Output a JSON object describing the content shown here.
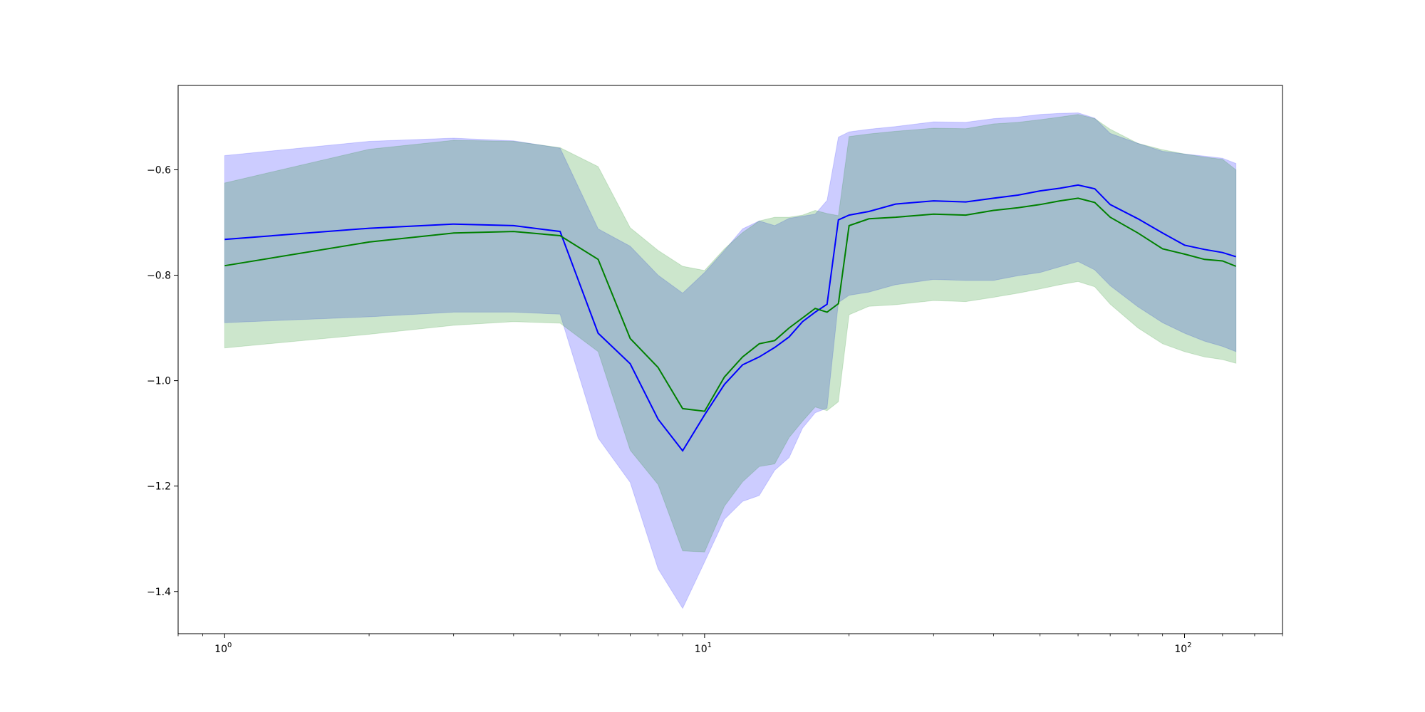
{
  "chart_data": {
    "type": "line",
    "title": "",
    "xlabel": "",
    "ylabel": "",
    "xscale": "log",
    "xlim": [
      0.8,
      160
    ],
    "ylim": [
      -1.48,
      -0.44
    ],
    "grid": false,
    "legend": "none",
    "x_ticks": [
      {
        "value": 1,
        "label": "10",
        "exp": "0"
      },
      {
        "value": 10,
        "label": "10",
        "exp": "1"
      },
      {
        "value": 100,
        "label": "10",
        "exp": "2"
      }
    ],
    "y_ticks": [
      {
        "value": -0.6,
        "label": "−0.6"
      },
      {
        "value": -0.8,
        "label": "−0.8"
      },
      {
        "value": -1.0,
        "label": "−1.0"
      },
      {
        "value": -1.2,
        "label": "−1.2"
      },
      {
        "value": -1.4,
        "label": "−1.4"
      }
    ],
    "series": [
      {
        "color": "#0000ff",
        "band_color": "#0000ff",
        "band_opacity": 0.2,
        "x": [
          1,
          2,
          3,
          4,
          5,
          6,
          7,
          8,
          9,
          10,
          11,
          12,
          13,
          14,
          15,
          16,
          17,
          18,
          19,
          20,
          22,
          25,
          30,
          35,
          40,
          45,
          50,
          55,
          60,
          65,
          70,
          80,
          90,
          100,
          110,
          120,
          128
        ],
        "mean": [
          -0.732,
          -0.711,
          -0.703,
          -0.706,
          -0.717,
          -0.91,
          -0.968,
          -1.073,
          -1.133,
          -1.065,
          -1.007,
          -0.97,
          -0.955,
          -0.937,
          -0.917,
          -0.888,
          -0.87,
          -0.855,
          -0.695,
          -0.686,
          -0.679,
          -0.665,
          -0.659,
          -0.661,
          -0.654,
          -0.648,
          -0.64,
          -0.635,
          -0.629,
          -0.636,
          -0.666,
          -0.693,
          -0.72,
          -0.743,
          -0.751,
          -0.757,
          -0.765
        ],
        "upper": [
          -0.573,
          -0.546,
          -0.54,
          -0.545,
          -0.559,
          -0.712,
          -0.745,
          -0.8,
          -0.834,
          -0.795,
          -0.753,
          -0.712,
          -0.697,
          -0.706,
          -0.692,
          -0.688,
          -0.684,
          -0.658,
          -0.538,
          -0.528,
          -0.523,
          -0.518,
          -0.509,
          -0.51,
          -0.503,
          -0.5,
          -0.495,
          -0.493,
          -0.492,
          -0.502,
          -0.531,
          -0.55,
          -0.565,
          -0.57,
          -0.574,
          -0.578,
          -0.588
        ],
        "lower": [
          -0.89,
          -0.879,
          -0.87,
          -0.87,
          -0.874,
          -1.109,
          -1.193,
          -1.357,
          -1.432,
          -1.344,
          -1.263,
          -1.229,
          -1.218,
          -1.17,
          -1.146,
          -1.09,
          -1.061,
          -1.052,
          -0.852,
          -0.838,
          -0.832,
          -0.818,
          -0.808,
          -0.81,
          -0.81,
          -0.801,
          -0.795,
          -0.784,
          -0.774,
          -0.79,
          -0.82,
          -0.86,
          -0.89,
          -0.91,
          -0.925,
          -0.935,
          -0.945
        ]
      },
      {
        "color": "#008000",
        "band_color": "#008000",
        "band_opacity": 0.2,
        "x": [
          1,
          2,
          3,
          4,
          5,
          6,
          7,
          8,
          9,
          10,
          11,
          12,
          13,
          14,
          15,
          16,
          17,
          18,
          19,
          20,
          22,
          25,
          30,
          35,
          40,
          45,
          50,
          55,
          60,
          65,
          70,
          80,
          90,
          100,
          110,
          120,
          128
        ],
        "mean": [
          -0.782,
          -0.737,
          -0.72,
          -0.717,
          -0.725,
          -0.77,
          -0.92,
          -0.975,
          -1.053,
          -1.058,
          -0.993,
          -0.955,
          -0.93,
          -0.924,
          -0.9,
          -0.881,
          -0.863,
          -0.87,
          -0.854,
          -0.706,
          -0.693,
          -0.69,
          -0.684,
          -0.686,
          -0.677,
          -0.672,
          -0.666,
          -0.659,
          -0.654,
          -0.662,
          -0.69,
          -0.72,
          -0.75,
          -0.76,
          -0.77,
          -0.773,
          -0.783
        ],
        "upper": [
          -0.625,
          -0.561,
          -0.544,
          -0.546,
          -0.558,
          -0.594,
          -0.71,
          -0.753,
          -0.783,
          -0.791,
          -0.75,
          -0.719,
          -0.697,
          -0.69,
          -0.69,
          -0.686,
          -0.677,
          -0.683,
          -0.687,
          -0.537,
          -0.532,
          -0.527,
          -0.521,
          -0.522,
          -0.513,
          -0.51,
          -0.505,
          -0.5,
          -0.495,
          -0.503,
          -0.523,
          -0.55,
          -0.562,
          -0.57,
          -0.576,
          -0.58,
          -0.6
        ],
        "lower": [
          -0.938,
          -0.912,
          -0.895,
          -0.888,
          -0.891,
          -0.945,
          -1.132,
          -1.197,
          -1.323,
          -1.325,
          -1.238,
          -1.192,
          -1.163,
          -1.158,
          -1.108,
          -1.077,
          -1.05,
          -1.057,
          -1.04,
          -0.875,
          -0.859,
          -0.856,
          -0.848,
          -0.85,
          -0.842,
          -0.834,
          -0.826,
          -0.818,
          -0.812,
          -0.822,
          -0.855,
          -0.9,
          -0.93,
          -0.945,
          -0.955,
          -0.96,
          -0.967
        ]
      }
    ]
  }
}
